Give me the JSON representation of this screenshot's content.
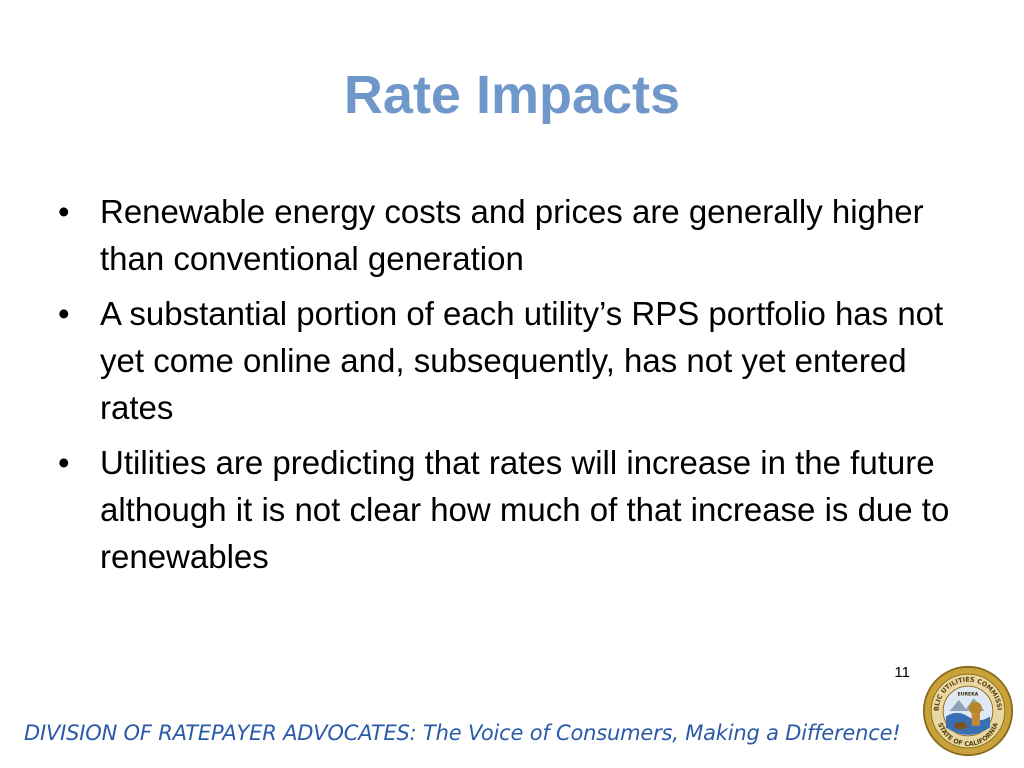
{
  "slide": {
    "title": "Rate Impacts",
    "bullets": [
      {
        "mark": "•",
        "text": "Renewable energy costs and prices are generally higher than conventional generation"
      },
      {
        "mark": "•",
        "text": "A substantial portion of each utility’s RPS portfolio has not yet come online and, subsequently, has not yet entered rates"
      },
      {
        "mark": "•",
        "text": "Utilities are predicting that rates will increase in the future although it is not clear how much of that increase is due to renewables"
      }
    ],
    "page_number": "11"
  },
  "footer": {
    "text": "DIVISION OF RATEPAYER ADVOCATES: The Voice of Consumers, Making a Difference!",
    "seal_text_top": "PUBLIC UTILITIES COMMISSION",
    "seal_text_bottom": "STATE OF CALIFORNIA",
    "seal_motto": "EUREKA"
  },
  "colors": {
    "title": "#6f97c9",
    "footer": "#2a5aa8",
    "seal_gold": "#c9a23a",
    "seal_blue": "#3b6fb3"
  }
}
